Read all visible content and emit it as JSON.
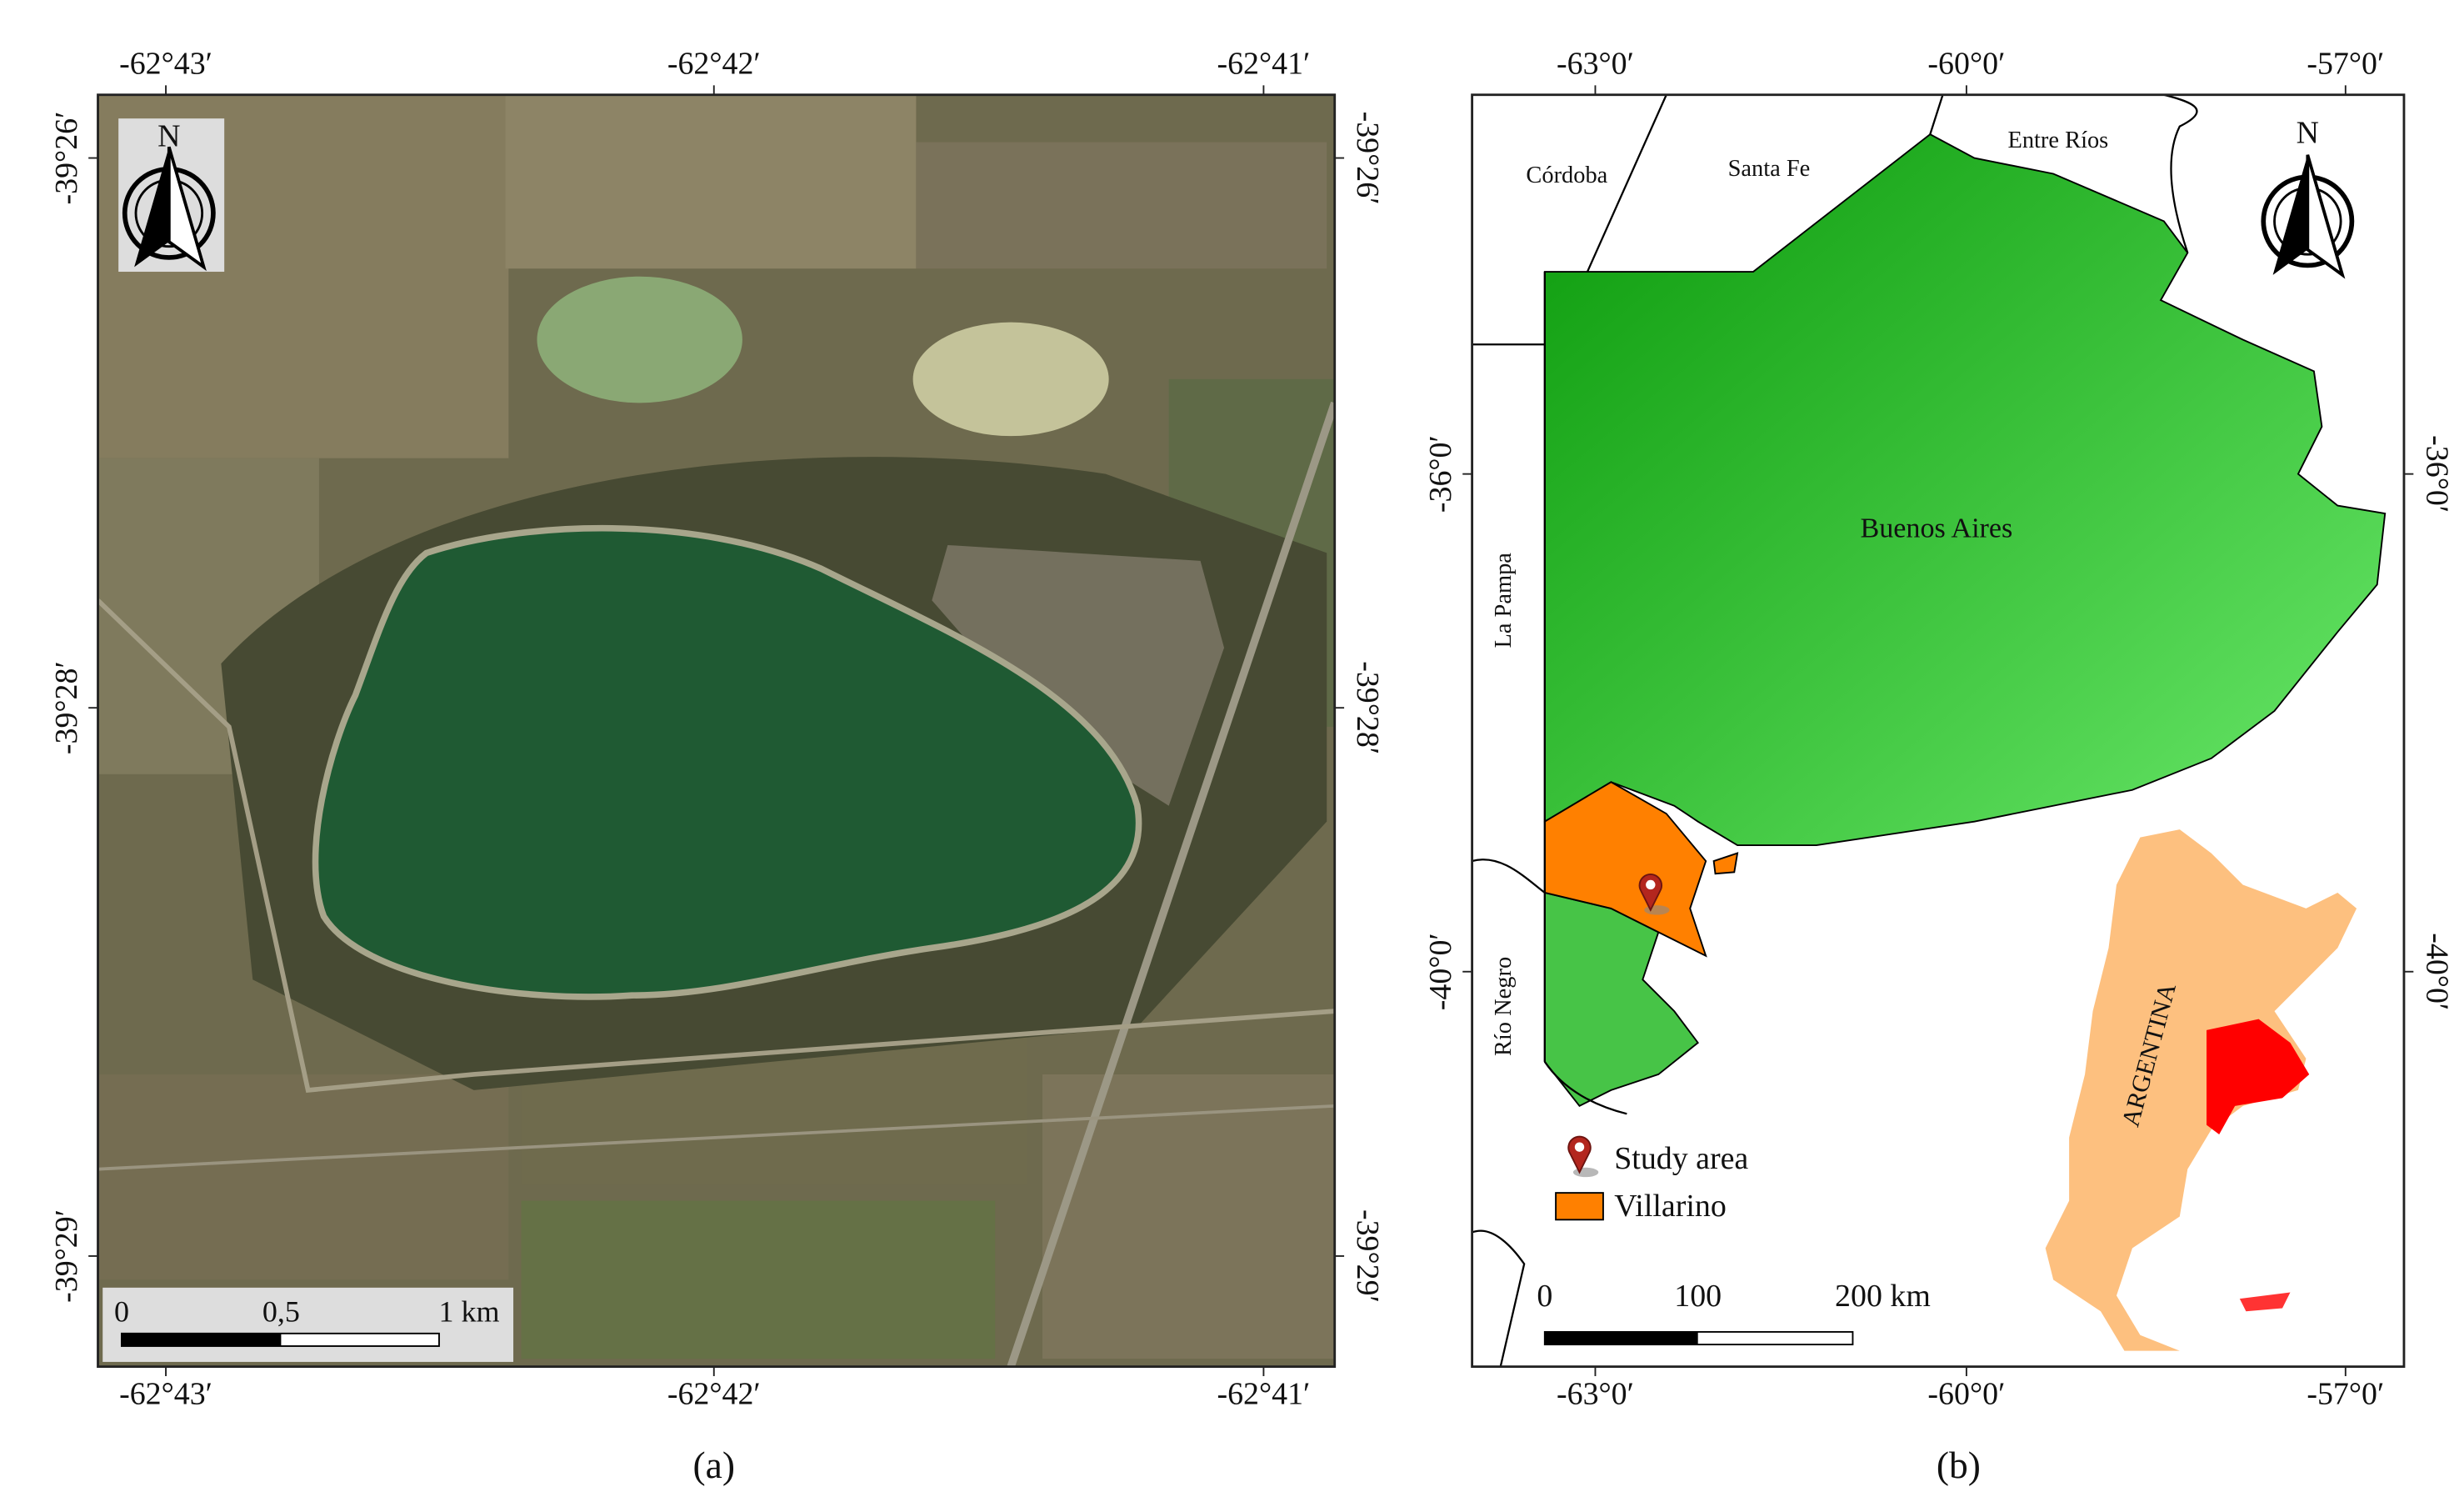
{
  "panel_a": {
    "caption": "(a)",
    "x_ticks": [
      "-62°43′",
      "-62°42′",
      "-62°41′"
    ],
    "y_ticks": [
      "-39°26′",
      "-39°28′",
      "-39°29′"
    ],
    "north": "N",
    "scale_bar": [
      "0",
      "0,5",
      "1 km"
    ]
  },
  "panel_b": {
    "caption": "(b)",
    "x_ticks": [
      "-63°0′",
      "-60°0′",
      "-57°0′"
    ],
    "y_ticks": [
      "-36°0′",
      "-40°0′"
    ],
    "north": "N",
    "regions": {
      "cordoba": "Córdoba",
      "santa_fe": "Santa Fe",
      "entre_rios": "Entre Ríos",
      "buenos_aires": "Buenos Aires",
      "la_pampa": "La Pampa",
      "rio_negro": "Río Negro",
      "argentina": "ARGENTINA"
    },
    "legend": [
      "Study area",
      "Villarino"
    ],
    "scale_bar": [
      "0",
      "100",
      "200 km"
    ]
  }
}
